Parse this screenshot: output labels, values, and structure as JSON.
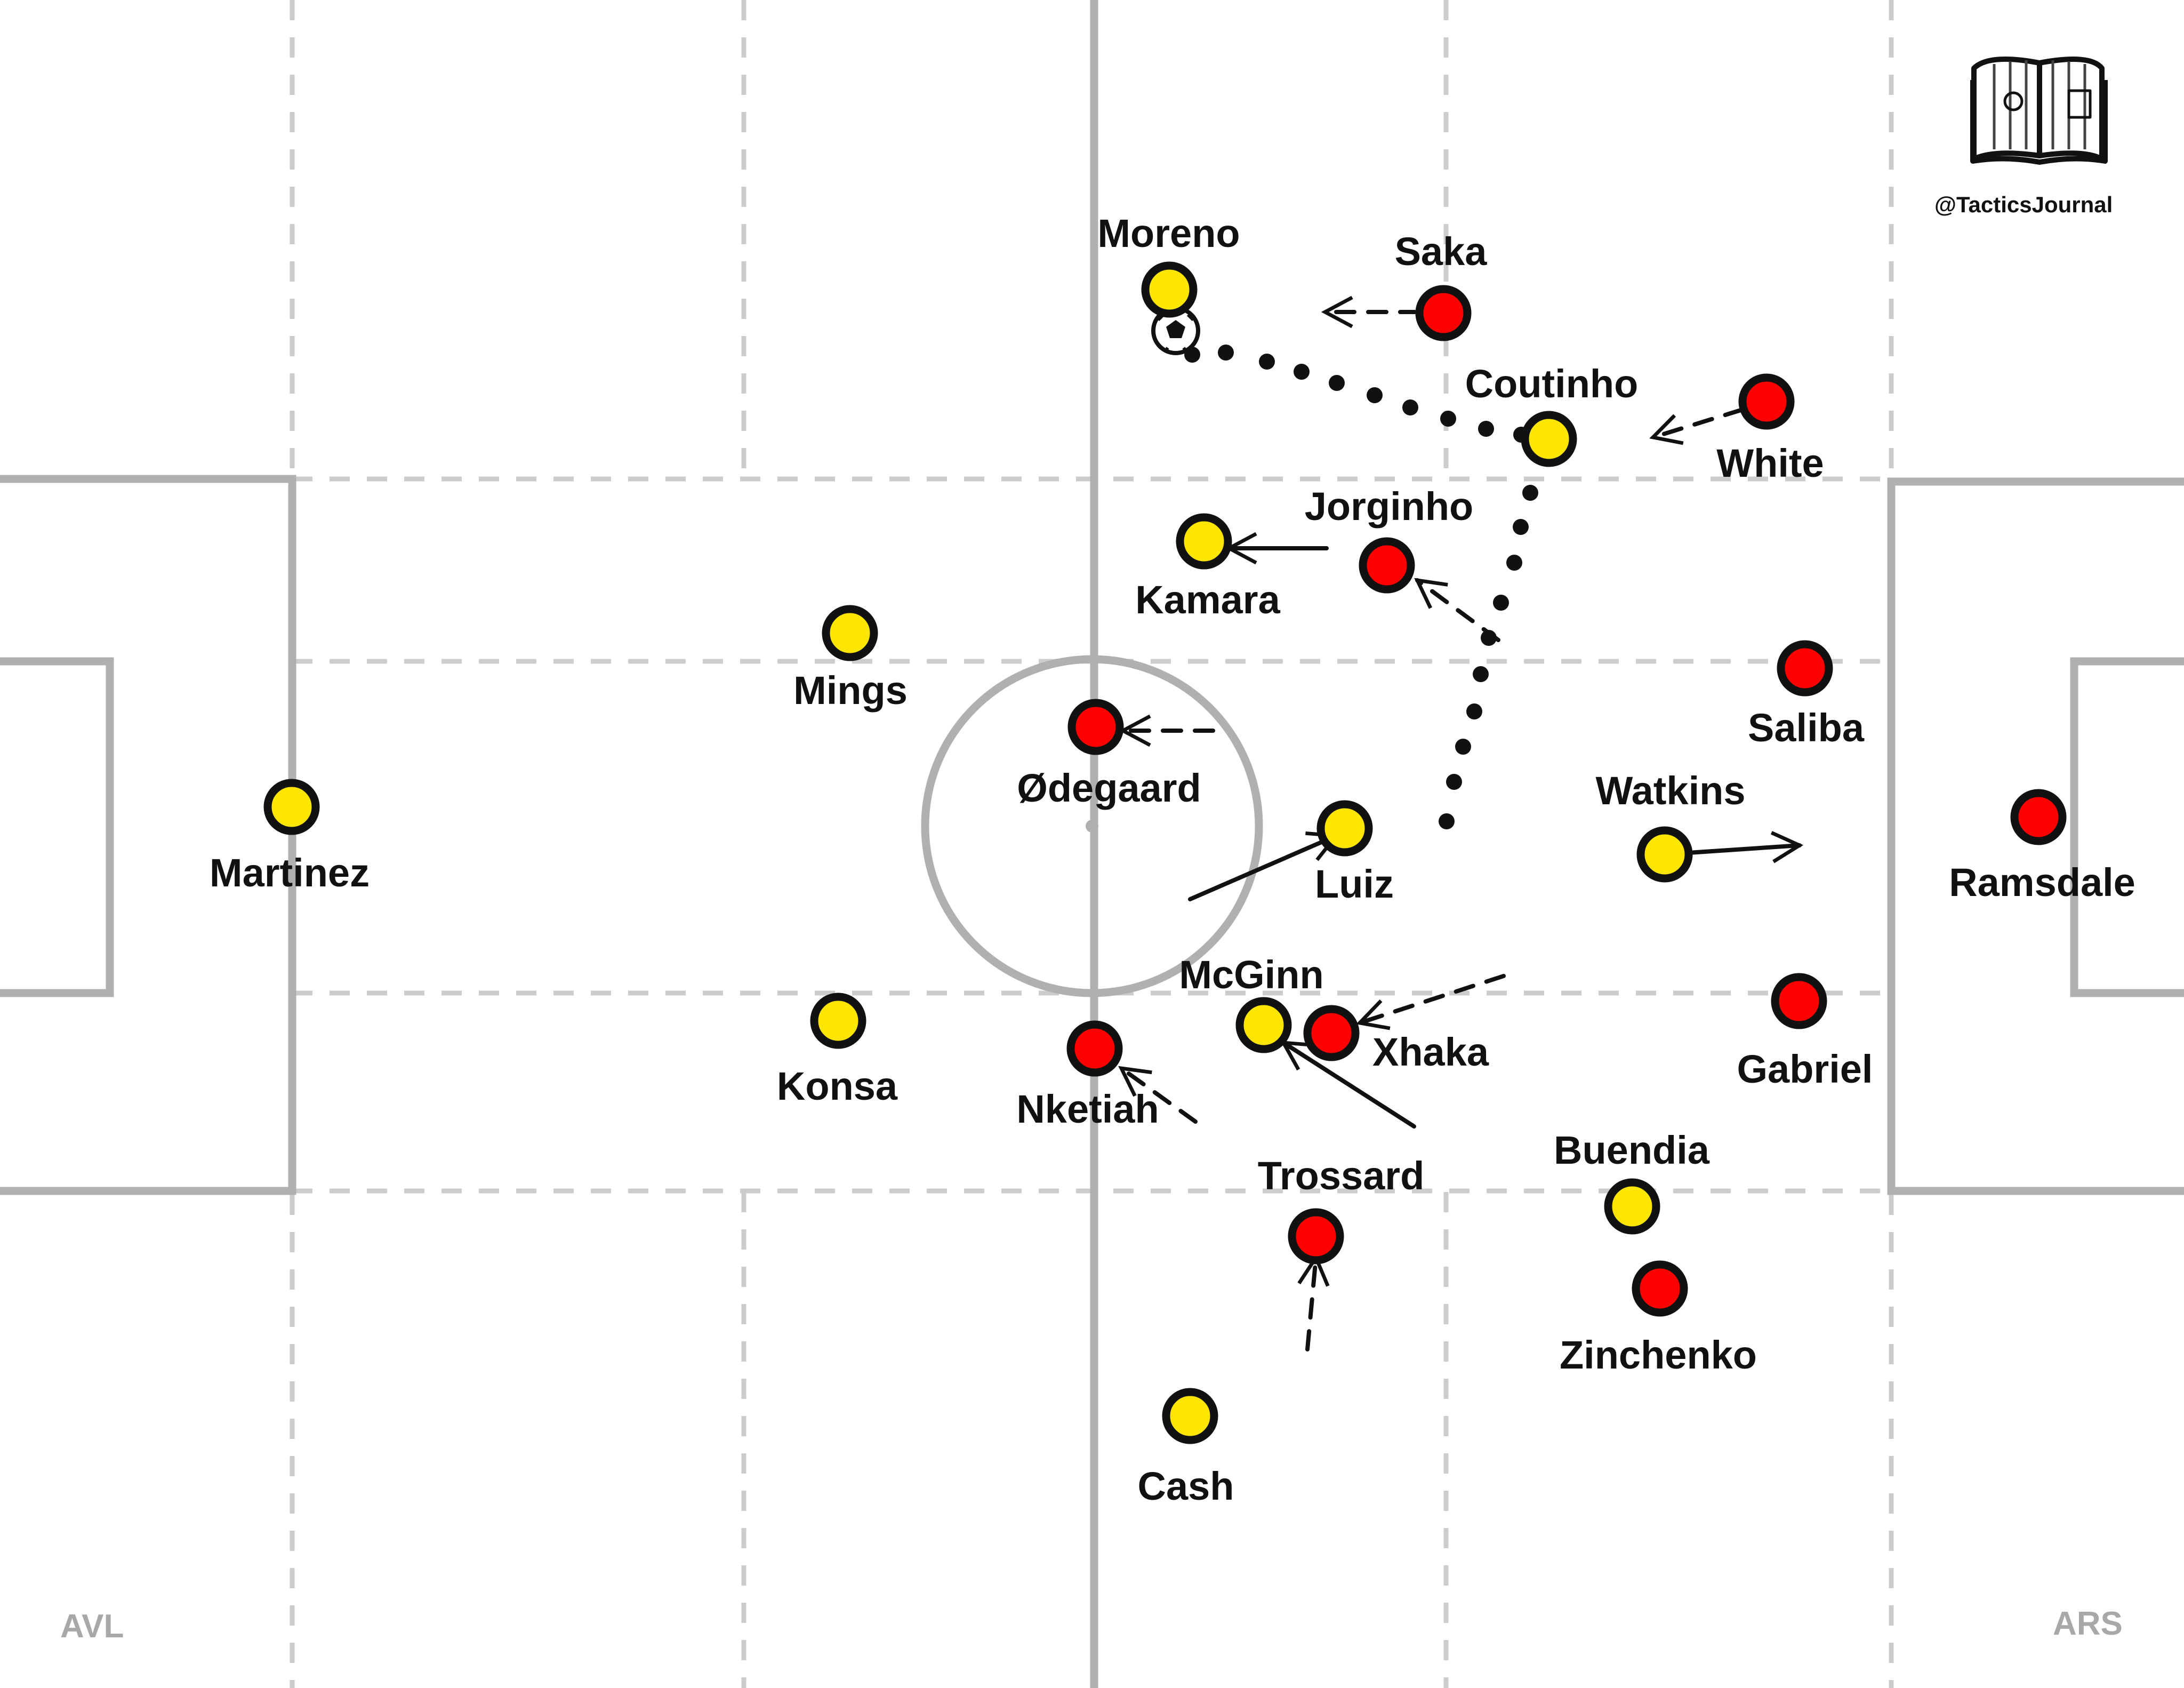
{
  "branding": {
    "handle": "@TacticsJournal",
    "logo_icon": "open-book-pitch-icon"
  },
  "teams": {
    "left": {
      "label": "AVL",
      "kit_color": "#ffe600"
    },
    "right": {
      "label": "ARS",
      "kit_color": "#ff0000"
    }
  },
  "players": {
    "martinez": {
      "name": "Martinez",
      "team": "left"
    },
    "mings": {
      "name": "Mings",
      "team": "left"
    },
    "konsa": {
      "name": "Konsa",
      "team": "left"
    },
    "moreno": {
      "name": "Moreno",
      "team": "left"
    },
    "kamara": {
      "name": "Kamara",
      "team": "left"
    },
    "coutinho": {
      "name": "Coutinho",
      "team": "left"
    },
    "luiz": {
      "name": "Luiz",
      "team": "left"
    },
    "mcginn": {
      "name": "McGinn",
      "team": "left"
    },
    "watkins": {
      "name": "Watkins",
      "team": "left"
    },
    "buendia": {
      "name": "Buendia",
      "team": "left"
    },
    "cash": {
      "name": "Cash",
      "team": "left"
    },
    "saka": {
      "name": "Saka",
      "team": "right"
    },
    "white": {
      "name": "White",
      "team": "right"
    },
    "jorginho": {
      "name": "Jorginho",
      "team": "right"
    },
    "odegaard": {
      "name": "Ødegaard",
      "team": "right"
    },
    "saliba": {
      "name": "Saliba",
      "team": "right"
    },
    "ramsdale": {
      "name": "Ramsdale",
      "team": "right"
    },
    "xhaka": {
      "name": "Xhaka",
      "team": "right"
    },
    "nketiah": {
      "name": "Nketiah",
      "team": "right"
    },
    "gabriel": {
      "name": "Gabriel",
      "team": "right"
    },
    "trossard": {
      "name": "Trossard",
      "team": "right"
    },
    "zinchenko": {
      "name": "Zinchenko",
      "team": "right"
    }
  }
}
